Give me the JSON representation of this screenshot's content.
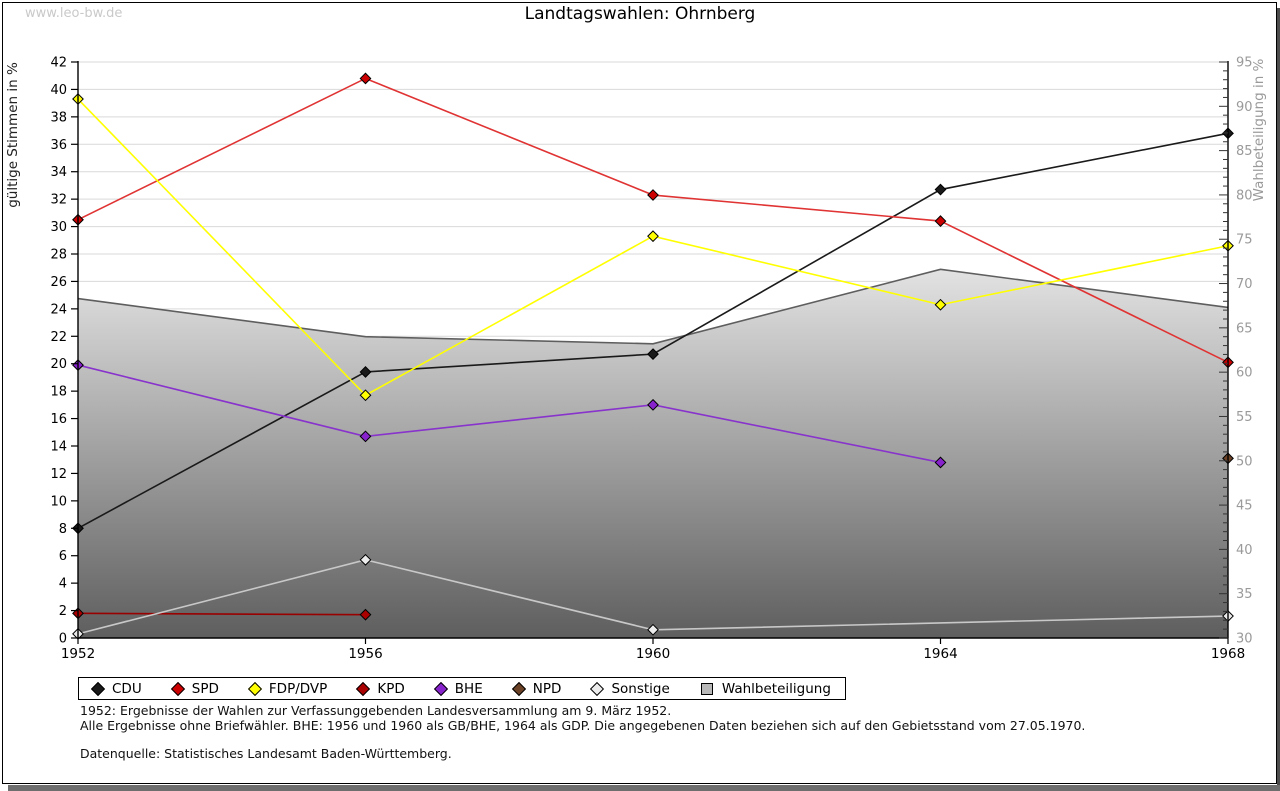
{
  "watermark": "www.leo-bw.de",
  "title": "Landtagswahlen: Ohrnberg",
  "chart_data": {
    "type": "line",
    "title": "Landtagswahlen: Ohrnberg",
    "x_categories": [
      "1952",
      "1956",
      "1960",
      "1964",
      "1968"
    ],
    "ylabel_left": "gültige Stimmen in %",
    "ylabel_right": "Wahlbeteiligung in %",
    "y_left_axis": {
      "min": 0,
      "max": 42,
      "tick_step": 2
    },
    "y_right_axis": {
      "min": 30,
      "max": 95,
      "label_step": 5,
      "minor_step": 1
    },
    "grid": "horizontal",
    "legend_position": "bottom",
    "series": [
      {
        "name": "CDU",
        "axis": "left",
        "line_color": "#1a1a1a",
        "marker_fill": "#1a1a1a",
        "values": [
          8.0,
          19.4,
          20.7,
          32.7,
          36.8
        ]
      },
      {
        "name": "SPD",
        "axis": "left",
        "line_color": "#e03333",
        "marker_fill": "#cc0000",
        "values": [
          30.5,
          40.8,
          32.3,
          30.4,
          20.1
        ]
      },
      {
        "name": "FDP/DVP",
        "axis": "left",
        "line_color": "#ffff00",
        "marker_fill": "#ffff00",
        "values": [
          39.3,
          17.7,
          29.3,
          24.3,
          28.6
        ]
      },
      {
        "name": "KPD",
        "axis": "left",
        "line_color": "#990000",
        "marker_fill": "#aa0000",
        "values": [
          1.8,
          1.7,
          null,
          null,
          null
        ]
      },
      {
        "name": "BHE",
        "axis": "left",
        "line_color": "#8833cc",
        "marker_fill": "#8822cc",
        "values": [
          19.9,
          14.7,
          17.0,
          12.8,
          null
        ]
      },
      {
        "name": "NPD",
        "axis": "left",
        "line_color": "#6b4226",
        "marker_fill": "#6b4226",
        "values": [
          null,
          null,
          null,
          null,
          13.1
        ]
      },
      {
        "name": "Sonstige",
        "axis": "left",
        "line_color": "#c8c8c8",
        "marker_fill": "#ececec",
        "values": [
          0.3,
          5.7,
          0.6,
          null,
          1.6
        ]
      }
    ],
    "area_series": {
      "name": "Wahlbeteiligung",
      "axis": "right",
      "outline_color": "#5e5e5e",
      "fill_top": "#ebebeb",
      "fill_bottom": "#5e5e5e",
      "values": [
        68.3,
        64.0,
        63.2,
        71.6,
        67.3
      ]
    },
    "colors_note": {
      "gridline": "#d9d9d9",
      "right_axis_text": "#9a9a9a",
      "axis_line": "#000000"
    }
  },
  "footnotes": {
    "line1": "1952: Ergebnisse der Wahlen zur Verfassunggebenden Landesversammlung am 9. März 1952.",
    "line2": "Alle Ergebnisse ohne Briefwähler. BHE: 1956 und 1960 als GB/BHE, 1964 als GDP. Die angegebenen Daten beziehen sich auf den Gebietsstand vom 27.05.1970.",
    "source": "Datenquelle: Statistisches Landesamt Baden-Württemberg."
  }
}
